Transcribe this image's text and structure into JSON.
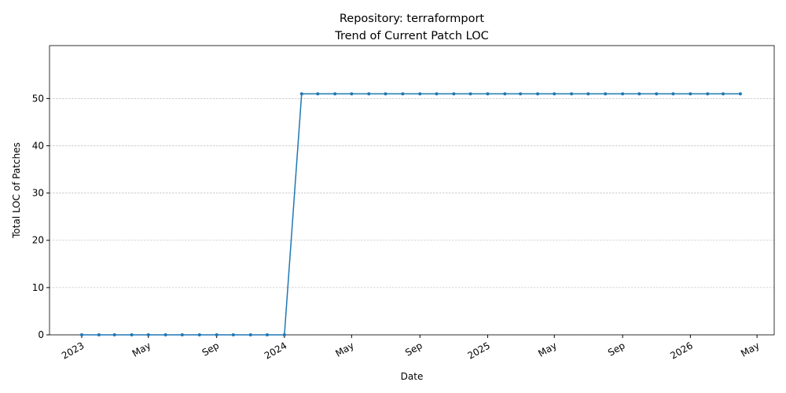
{
  "chart_data": {
    "type": "line",
    "title": "Repository: terraformport",
    "subtitle": "Trend of Current Patch LOC",
    "xlabel": "Date",
    "ylabel": "Total LOC of Patches",
    "x": [
      "2023-01",
      "2023-02",
      "2023-03",
      "2023-04",
      "2023-05",
      "2023-06",
      "2023-07",
      "2023-08",
      "2023-09",
      "2023-10",
      "2023-11",
      "2023-12",
      "2024-01",
      "2024-02",
      "2024-03",
      "2024-04",
      "2024-05",
      "2024-06",
      "2024-07",
      "2024-08",
      "2024-09",
      "2024-10",
      "2024-11",
      "2024-12",
      "2025-01",
      "2025-02",
      "2025-03",
      "2025-04",
      "2025-05",
      "2025-06",
      "2025-07",
      "2025-08",
      "2025-09",
      "2025-10",
      "2025-11",
      "2025-12",
      "2026-01",
      "2026-02",
      "2026-03",
      "2026-04"
    ],
    "series": [
      {
        "name": "Total LOC of Patches",
        "color": "#1f77b4",
        "values": [
          0,
          0,
          0,
          0,
          0,
          0,
          0,
          0,
          0,
          0,
          0,
          0,
          0,
          51,
          51,
          51,
          51,
          51,
          51,
          51,
          51,
          51,
          51,
          51,
          51,
          51,
          51,
          51,
          51,
          51,
          51,
          51,
          51,
          51,
          51,
          51,
          51,
          51,
          51,
          51
        ]
      }
    ],
    "xlim": [
      "2022-11-04",
      "2026-06-01"
    ],
    "xticks": [
      {
        "value": "2023-01",
        "label": "2023"
      },
      {
        "value": "2023-05",
        "label": "May"
      },
      {
        "value": "2023-09",
        "label": "Sep"
      },
      {
        "value": "2024-01",
        "label": "2024"
      },
      {
        "value": "2024-05",
        "label": "May"
      },
      {
        "value": "2024-09",
        "label": "Sep"
      },
      {
        "value": "2025-01",
        "label": "2025"
      },
      {
        "value": "2025-05",
        "label": "May"
      },
      {
        "value": "2025-09",
        "label": "Sep"
      },
      {
        "value": "2026-01",
        "label": "2026"
      },
      {
        "value": "2026-05",
        "label": "May"
      }
    ],
    "ylim": [
      0,
      61.2
    ],
    "yticks": [
      0,
      10,
      20,
      30,
      40,
      50
    ],
    "grid": "y"
  }
}
